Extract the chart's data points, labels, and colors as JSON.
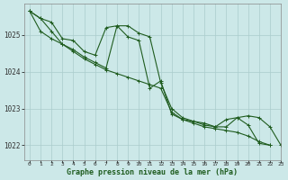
{
  "title": "Graphe pression niveau de la mer (hPa)",
  "background_color": "#cce8e8",
  "grid_color": "#aacccc",
  "line_color": "#1f5c1f",
  "marker_color": "#1f5c1f",
  "xlim": [
    -0.5,
    23
  ],
  "ylim": [
    1021.6,
    1025.85
  ],
  "yticks": [
    1022,
    1023,
    1024,
    1025
  ],
  "xticks": [
    0,
    1,
    2,
    3,
    4,
    5,
    6,
    7,
    8,
    9,
    10,
    11,
    12,
    13,
    14,
    15,
    16,
    17,
    18,
    19,
    20,
    21,
    22,
    23
  ],
  "series": [
    [
      1025.65,
      1025.45,
      1025.35,
      1024.9,
      1024.85,
      1024.55,
      1024.45,
      1025.2,
      1025.25,
      1024.95,
      1024.85,
      1023.55,
      1023.75,
      1022.85,
      1022.7,
      1022.65,
      1022.55,
      1022.5,
      1022.7,
      1022.75,
      1022.55,
      1022.05,
      1022.0,
      null
    ],
    [
      1025.65,
      1025.45,
      1025.1,
      1024.75,
      1024.55,
      1024.35,
      1024.2,
      1024.05,
      1023.95,
      1023.85,
      1023.75,
      1023.65,
      1023.55,
      1022.9,
      1022.7,
      1022.6,
      1022.5,
      1022.45,
      1022.4,
      1022.35,
      1022.25,
      1022.1,
      1022.0,
      null
    ],
    [
      1025.65,
      1025.1,
      1024.9,
      1024.75,
      1024.6,
      1024.4,
      1024.25,
      1024.1,
      1025.25,
      1025.25,
      1025.05,
      1024.95,
      1023.7,
      1023.0,
      1022.75,
      1022.65,
      1022.6,
      1022.5,
      1022.5,
      1022.75,
      1022.8,
      1022.75,
      1022.5,
      1022.0
    ]
  ]
}
